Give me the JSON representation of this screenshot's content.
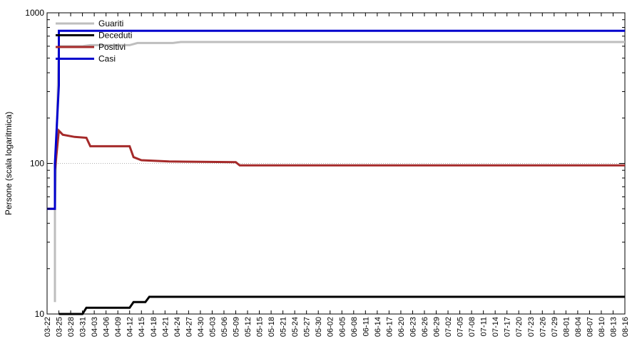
{
  "chart_data": {
    "type": "line",
    "title": "",
    "xlabel": "",
    "ylabel": "Persone (scala logaritmica)",
    "y_scale": "log",
    "ylim": [
      10,
      1000
    ],
    "y_ticks": [
      10,
      100,
      1000
    ],
    "y_tick_labels": [
      "10",
      "100",
      "1000"
    ],
    "xlim": [
      "2020-03-22",
      "2020-08-16"
    ],
    "x_tick_labels": [
      "03-22",
      "03-25",
      "03-28",
      "03-31",
      "04-03",
      "04-06",
      "04-09",
      "04-12",
      "04-15",
      "04-18",
      "04-21",
      "04-24",
      "04-27",
      "04-30",
      "05-03",
      "05-06",
      "05-09",
      "05-12",
      "05-15",
      "05-18",
      "05-21",
      "05-24",
      "05-27",
      "05-30",
      "06-02",
      "06-05",
      "06-08",
      "06-11",
      "06-14",
      "06-17",
      "06-20",
      "06-23",
      "06-26",
      "06-29",
      "07-02",
      "07-05",
      "07-08",
      "07-11",
      "07-14",
      "07-17",
      "07-20",
      "07-23",
      "07-26",
      "07-29",
      "08-01",
      "08-04",
      "08-07",
      "08-10",
      "08-13",
      "08-16"
    ],
    "grid": "horizontal dotted line at 100",
    "legend_position": "top-left",
    "series": [
      {
        "name": "Guariti",
        "color": "#bebebe",
        "points": [
          [
            "2020-03-22",
            null
          ],
          [
            "2020-03-24",
            12
          ],
          [
            "2020-03-24",
            50
          ],
          [
            "2020-03-25",
            600
          ],
          [
            "2020-03-31",
            600
          ],
          [
            "2020-04-02",
            610
          ],
          [
            "2020-04-12",
            610
          ],
          [
            "2020-04-14",
            630
          ],
          [
            "2020-04-23",
            630
          ],
          [
            "2020-04-25",
            640
          ],
          [
            "2020-08-16",
            640
          ]
        ]
      },
      {
        "name": "Deceduti",
        "color": "#000000",
        "points": [
          [
            "2020-03-25",
            10
          ],
          [
            "2020-03-31",
            10
          ],
          [
            "2020-04-01",
            11
          ],
          [
            "2020-04-12",
            11
          ],
          [
            "2020-04-13",
            12
          ],
          [
            "2020-04-16",
            12
          ],
          [
            "2020-04-17",
            13
          ],
          [
            "2020-08-16",
            13
          ]
        ]
      },
      {
        "name": "Positivi",
        "color": "#a52a2a",
        "points": [
          [
            "2020-03-22",
            50
          ],
          [
            "2020-03-24",
            50
          ],
          [
            "2020-03-24",
            90
          ],
          [
            "2020-03-25",
            165
          ],
          [
            "2020-03-26",
            155
          ],
          [
            "2020-03-29",
            150
          ],
          [
            "2020-04-01",
            148
          ],
          [
            "2020-04-02",
            130
          ],
          [
            "2020-04-12",
            130
          ],
          [
            "2020-04-13",
            110
          ],
          [
            "2020-04-15",
            105
          ],
          [
            "2020-04-22",
            103
          ],
          [
            "2020-05-09",
            102
          ],
          [
            "2020-05-10",
            97
          ],
          [
            "2020-08-16",
            97
          ]
        ]
      },
      {
        "name": "Casi",
        "color": "#0000cd",
        "points": [
          [
            "2020-03-22",
            50
          ],
          [
            "2020-03-24",
            50
          ],
          [
            "2020-03-24",
            100
          ],
          [
            "2020-03-25",
            330
          ],
          [
            "2020-03-25",
            760
          ],
          [
            "2020-08-16",
            760
          ]
        ]
      }
    ]
  }
}
